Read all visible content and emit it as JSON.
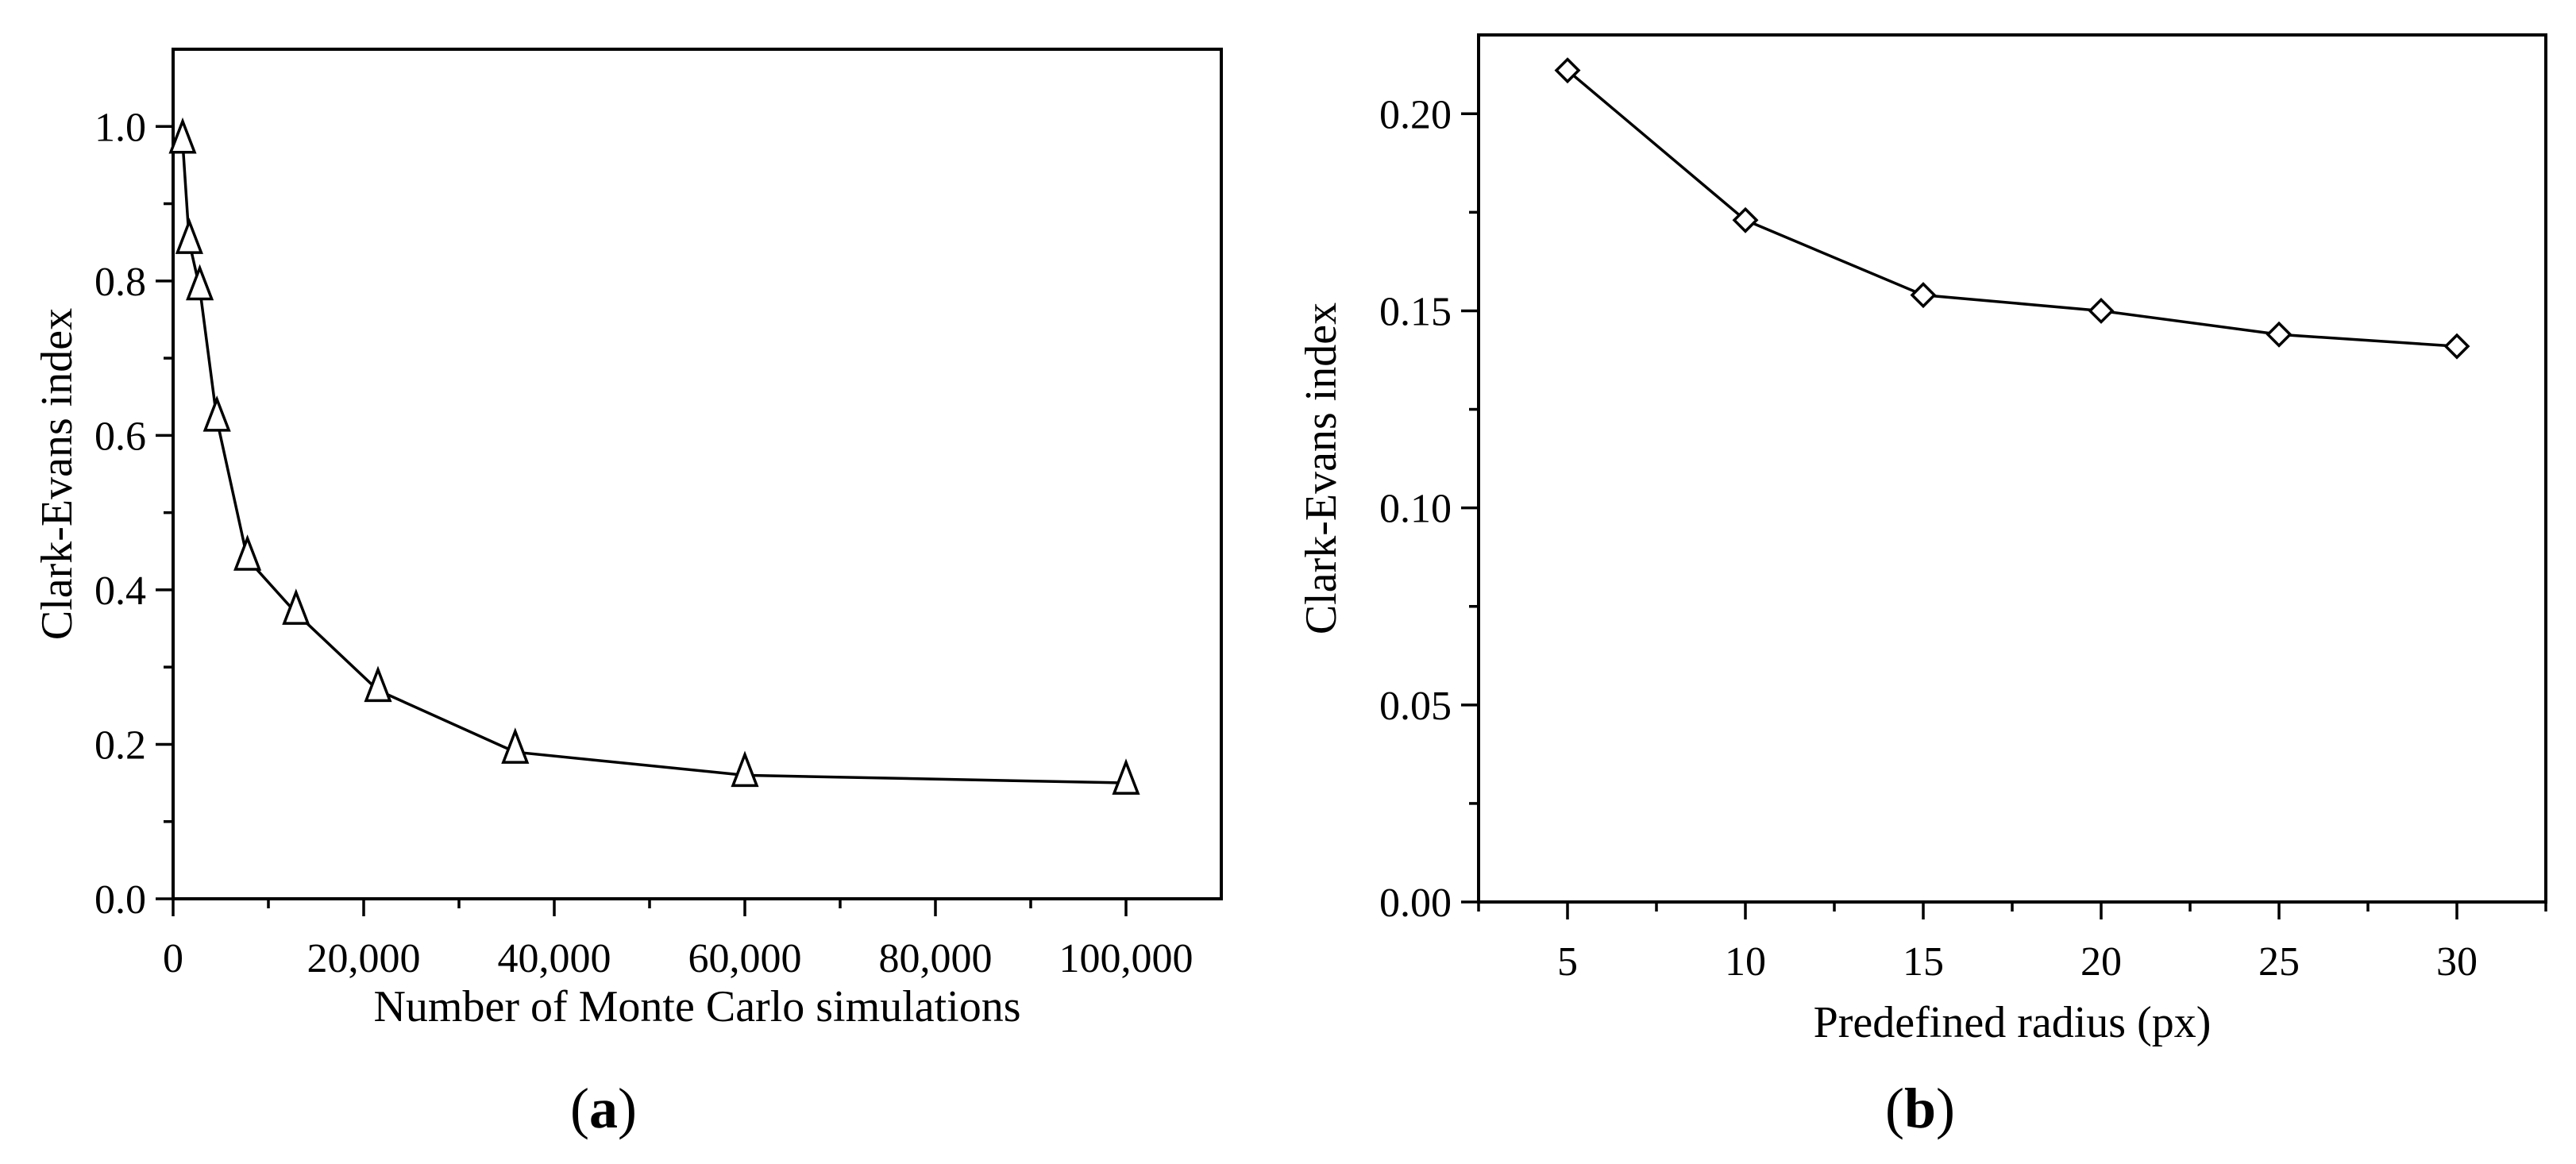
{
  "chart_data": [
    {
      "type": "line",
      "panel_label": "a",
      "title": "",
      "xlabel": "Number of Monte Carlo simulations",
      "ylabel": "Clark-Evans index",
      "xlim": [
        0,
        110000
      ],
      "ylim": [
        0,
        1.1
      ],
      "xticks": [
        0,
        20000,
        40000,
        60000,
        80000,
        100000
      ],
      "xtick_labels": [
        "0",
        "20,000",
        "40,000",
        "60,000",
        "80,000",
        "100,000"
      ],
      "xminor": [
        10000,
        30000,
        50000,
        70000,
        90000
      ],
      "yticks": [
        0,
        0.2,
        0.4,
        0.6,
        0.8,
        1.0
      ],
      "ytick_labels": [
        "0.0",
        "0.2",
        "0.4",
        "0.6",
        "0.8",
        "1.0"
      ],
      "yminor": [
        0.1,
        0.3,
        0.5,
        0.7,
        0.9
      ],
      "marker": "triangle",
      "series": [
        {
          "name": "Clark-Evans index",
          "x": [
            1000,
            1700,
            2800,
            4600,
            7800,
            12900,
            21500,
            35900,
            60000,
            100000
          ],
          "y": [
            0.98,
            0.85,
            0.79,
            0.62,
            0.44,
            0.37,
            0.27,
            0.19,
            0.16,
            0.15
          ]
        }
      ]
    },
    {
      "type": "line",
      "panel_label": "b",
      "title": "",
      "xlabel": "Predefined radius (px)",
      "ylabel": "Clark-Evans index",
      "xlim": [
        2.5,
        32.5
      ],
      "ylim": [
        0,
        0.22
      ],
      "xticks": [
        5,
        10,
        15,
        20,
        25,
        30
      ],
      "xtick_labels": [
        "5",
        "10",
        "15",
        "20",
        "25",
        "30"
      ],
      "xminor": [
        2.5,
        7.5,
        12.5,
        17.5,
        22.5,
        27.5,
        32.5
      ],
      "yticks": [
        0,
        0.05,
        0.1,
        0.15,
        0.2
      ],
      "ytick_labels": [
        "0.00",
        "0.05",
        "0.10",
        "0.15",
        "0.20"
      ],
      "yminor": [
        0.025,
        0.075,
        0.125,
        0.175
      ],
      "marker": "diamond",
      "series": [
        {
          "name": "Clark-Evans index",
          "x": [
            5,
            10,
            15,
            20,
            25,
            30
          ],
          "y": [
            0.211,
            0.173,
            0.154,
            0.15,
            0.144,
            0.141
          ]
        }
      ]
    }
  ]
}
